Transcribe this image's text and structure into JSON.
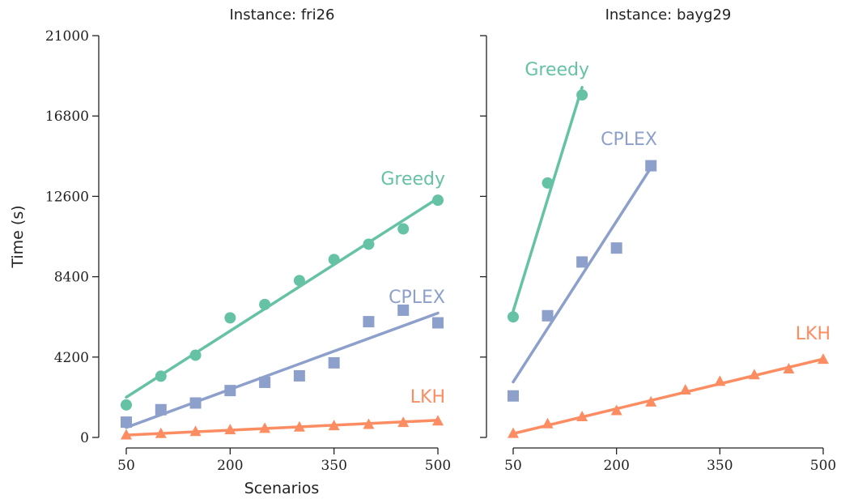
{
  "chart_data": {
    "type": "scatter",
    "ylabel": "Time (s)",
    "xlabel": "Scenarios",
    "ylim": [
      0,
      21000
    ],
    "yticks": [
      0,
      4200,
      8400,
      12600,
      16800,
      21000
    ],
    "xlim": [
      50,
      500
    ],
    "xticks": [
      50,
      200,
      350,
      500
    ],
    "panels": [
      {
        "title": "Instance:  fri26",
        "series": [
          {
            "name": "Greedy",
            "color": "#66c2a5",
            "marker": "circle",
            "x": [
              50,
              100,
              150,
              200,
              250,
              300,
              350,
              400,
              450,
              500
            ],
            "y": [
              1700,
              3200,
              4300,
              6250,
              6950,
              8200,
              9300,
              10100,
              10900,
              12400
            ],
            "fit": [
              [
                50,
                2100
              ],
              [
                500,
                12500
              ]
            ]
          },
          {
            "name": "CPLEX",
            "color": "#8da0cb",
            "marker": "square",
            "x": [
              50,
              100,
              150,
              200,
              250,
              300,
              350,
              400,
              450,
              500
            ],
            "y": [
              800,
              1450,
              1800,
              2450,
              2880,
              3220,
              3900,
              6050,
              6650,
              5990
            ],
            "fit": [
              [
                50,
                520
              ],
              [
                500,
                6500
              ]
            ]
          },
          {
            "name": "LKH",
            "color": "#fc8d62",
            "marker": "triangle",
            "x": [
              50,
              100,
              150,
              200,
              250,
              300,
              350,
              400,
              450,
              500
            ],
            "y": [
              150,
              220,
              330,
              420,
              490,
              560,
              630,
              700,
              800,
              880
            ],
            "fit": [
              [
                50,
                120
              ],
              [
                500,
                900
              ]
            ]
          }
        ]
      },
      {
        "title": "Instance:  bayg29",
        "series": [
          {
            "name": "Greedy",
            "color": "#66c2a5",
            "marker": "circle",
            "x": [
              50,
              100,
              150
            ],
            "y": [
              6300,
              13300,
              17900
            ],
            "fit": [
              [
                50,
                6600
              ],
              [
                150,
                18300
              ]
            ]
          },
          {
            "name": "CPLEX",
            "color": "#8da0cb",
            "marker": "square",
            "x": [
              50,
              100,
              150,
              200,
              250
            ],
            "y": [
              2170,
              6360,
              9170,
              9900,
              14200
            ],
            "fit": [
              [
                50,
                2900
              ],
              [
                250,
                14100
              ]
            ]
          },
          {
            "name": "LKH",
            "color": "#fc8d62",
            "marker": "triangle",
            "x": [
              50,
              100,
              150,
              200,
              250,
              300,
              350,
              400,
              450,
              500
            ],
            "y": [
              230,
              730,
              1100,
              1420,
              1870,
              2500,
              2950,
              3290,
              3600,
              4100
            ],
            "fit": [
              [
                50,
                200
              ],
              [
                500,
                4100
              ]
            ]
          }
        ]
      }
    ]
  }
}
